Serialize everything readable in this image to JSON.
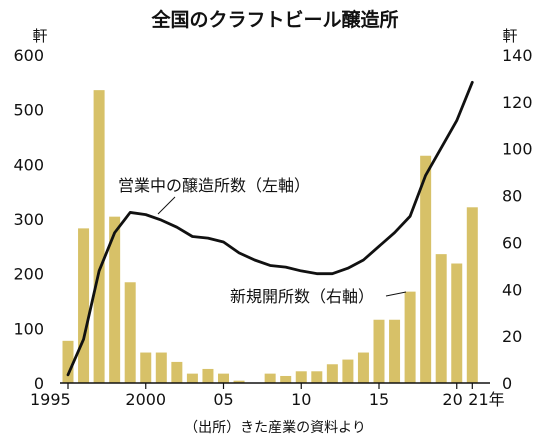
{
  "chart_data": {
    "type": "bar+line",
    "title": "全国のクラフトビール醸造所",
    "source": "（出所）きた産業の資料より",
    "left_axis": {
      "unit": "軒",
      "range": [
        0,
        600
      ],
      "ticks": [
        "0",
        "100",
        "200",
        "300",
        "400",
        "500",
        "600"
      ]
    },
    "right_axis": {
      "unit": "軒",
      "range": [
        0,
        140
      ],
      "ticks": [
        "0",
        "20",
        "40",
        "60",
        "80",
        "100",
        "120",
        "140"
      ]
    },
    "x_ticks": [
      {
        "year": 1995,
        "label": "1995"
      },
      {
        "year": 2000,
        "label": "2000"
      },
      {
        "year": 2005,
        "label": "05"
      },
      {
        "year": 2010,
        "label": "10"
      },
      {
        "year": 2015,
        "label": "15"
      },
      {
        "year": 2020,
        "label": "20"
      },
      {
        "year": 2021,
        "label": "21年"
      }
    ],
    "x": [
      1995,
      1996,
      1997,
      1998,
      1999,
      2000,
      2001,
      2002,
      2003,
      2004,
      2005,
      2006,
      2007,
      2008,
      2009,
      2010,
      2011,
      2012,
      2013,
      2014,
      2015,
      2016,
      2017,
      2018,
      2019,
      2020,
      2021
    ],
    "series": [
      {
        "name": "新規開所数（右軸）",
        "type": "bar",
        "axis": "right",
        "color": "#d7c168",
        "values": [
          18,
          66,
          125,
          71,
          43,
          13,
          13,
          9,
          4,
          6,
          4,
          1,
          0,
          4,
          3,
          5,
          5,
          8,
          10,
          13,
          27,
          27,
          39,
          97,
          55,
          51,
          75
        ]
      },
      {
        "name": "営業中の醸造所数（左軸）",
        "type": "line",
        "axis": "left",
        "color": "#111111",
        "values": [
          15,
          80,
          205,
          275,
          312,
          308,
          298,
          285,
          268,
          265,
          258,
          238,
          225,
          215,
          212,
          205,
          200,
          200,
          210,
          225,
          250,
          275,
          305,
          380,
          430,
          480,
          550
        ]
      }
    ]
  }
}
